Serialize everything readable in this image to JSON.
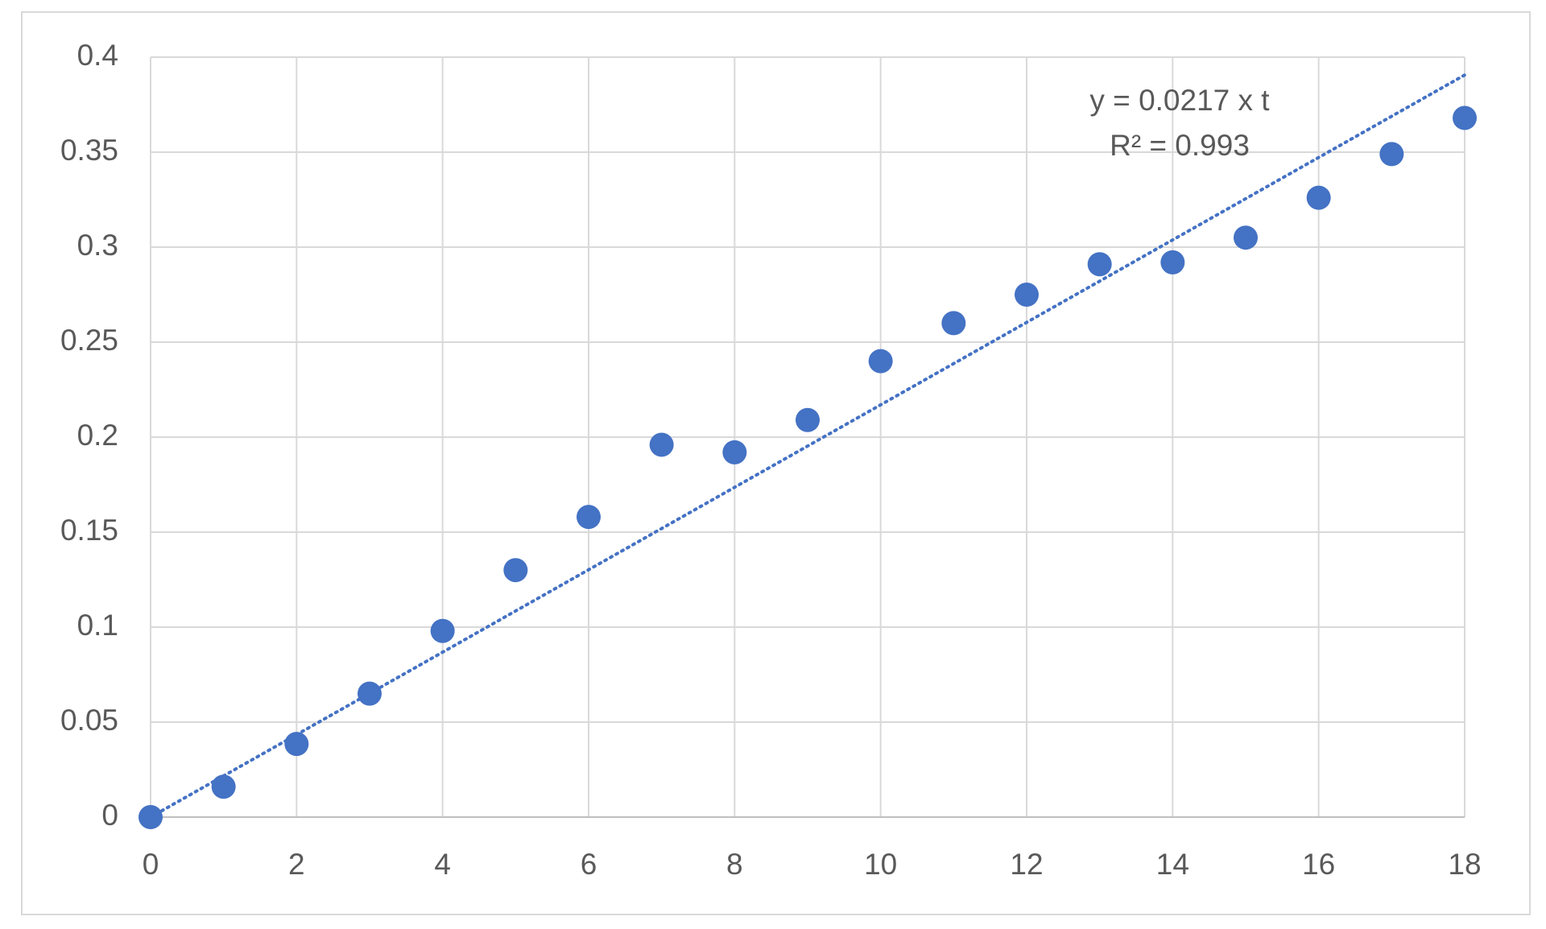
{
  "chart_data": {
    "type": "scatter",
    "color": "#4472c4",
    "x": [
      0,
      1,
      2,
      3,
      4,
      5,
      6,
      7,
      8,
      9,
      10,
      11,
      12,
      13,
      14,
      15,
      16,
      17,
      18
    ],
    "values": [
      0.0,
      0.016,
      0.0385,
      0.065,
      0.098,
      0.13,
      0.158,
      0.196,
      0.192,
      0.209,
      0.24,
      0.26,
      0.275,
      0.291,
      0.292,
      0.305,
      0.326,
      0.349,
      0.368
    ],
    "xlim": [
      0,
      18
    ],
    "xticks": [
      0,
      2,
      4,
      6,
      8,
      10,
      12,
      14,
      16,
      18
    ],
    "ylim": [
      0,
      0.4
    ],
    "yticks": [
      0,
      0.05,
      0.1,
      0.15,
      0.2,
      0.25,
      0.3,
      0.35,
      0.4
    ],
    "grid": true,
    "trendline": {
      "slope": 0.0217,
      "equation": "y = 0.0217 x t",
      "r_squared": "R² = 0.993"
    }
  }
}
